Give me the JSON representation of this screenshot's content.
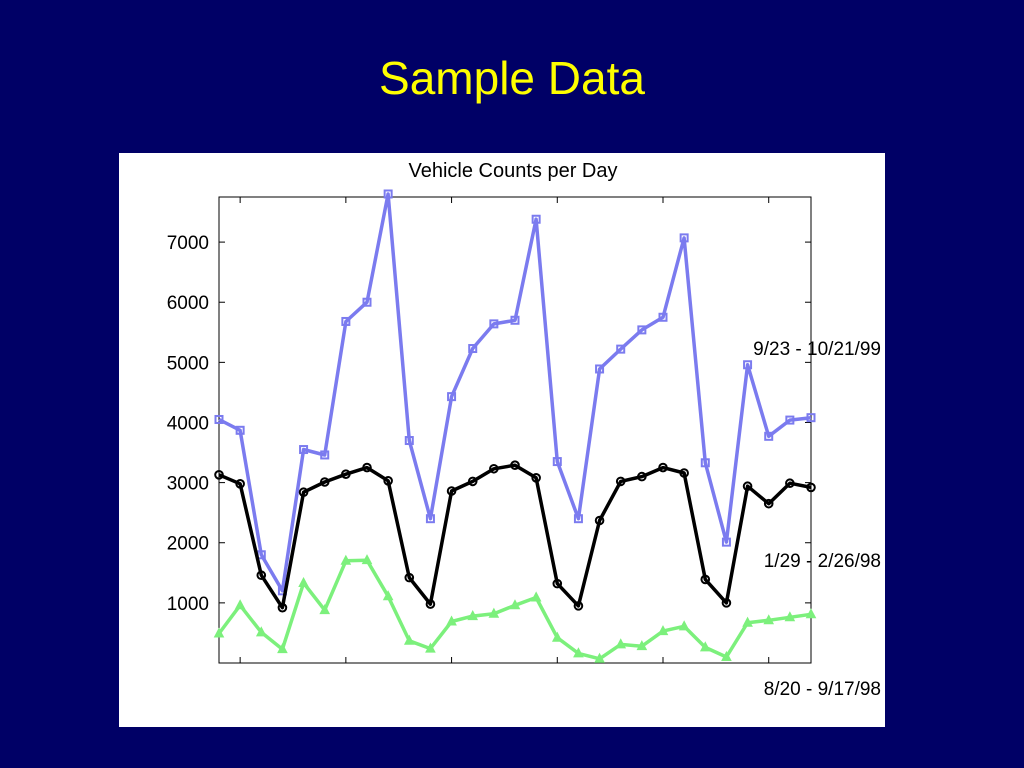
{
  "slide": {
    "title": "Sample Data"
  },
  "chart_data": {
    "type": "line",
    "title": "Vehicle Counts per Day",
    "xlabel": "",
    "ylabel": "",
    "x": [
      1,
      2,
      3,
      4,
      5,
      6,
      7,
      8,
      9,
      10,
      11,
      12,
      13,
      14,
      15,
      16,
      17,
      18,
      19,
      20,
      21,
      22,
      23,
      24,
      25,
      26,
      27,
      28,
      29
    ],
    "xlim": [
      1,
      29
    ],
    "ylim": [
      0,
      7750
    ],
    "yticks": [
      1000,
      2000,
      3000,
      4000,
      5000,
      6000,
      7000
    ],
    "yticklabels": [
      "1000",
      "2000",
      "3000",
      "4000",
      "5000",
      "6000",
      "7000"
    ],
    "grid": false,
    "series": [
      {
        "name": "9/23 - 10/21/99",
        "color": "#7b7bef",
        "marker": "square",
        "values": [
          4050,
          3870,
          1800,
          1200,
          3550,
          3460,
          5680,
          6000,
          7800,
          3700,
          2400,
          4430,
          5230,
          5640,
          5700,
          7380,
          3350,
          2400,
          4890,
          5220,
          5540,
          5750,
          7070,
          3330,
          2010,
          4960,
          3770,
          4040,
          4080
        ]
      },
      {
        "name": "1/29 - 2/26/98",
        "color": "#000000",
        "marker": "circle",
        "values": [
          3130,
          2980,
          1460,
          920,
          2840,
          3010,
          3140,
          3250,
          3030,
          1420,
          980,
          2860,
          3020,
          3230,
          3290,
          3080,
          1320,
          950,
          2370,
          3020,
          3100,
          3250,
          3160,
          1390,
          1000,
          2940,
          2650,
          2990,
          2920
        ]
      },
      {
        "name": "8/20 - 9/17/98",
        "color": "#7cf07c",
        "marker": "triangle",
        "values": [
          490,
          960,
          510,
          230,
          1330,
          880,
          1700,
          1710,
          1110,
          370,
          240,
          690,
          780,
          820,
          960,
          1090,
          420,
          160,
          70,
          310,
          280,
          530,
          610,
          260,
          100,
          670,
          710,
          760,
          810
        ]
      }
    ]
  }
}
